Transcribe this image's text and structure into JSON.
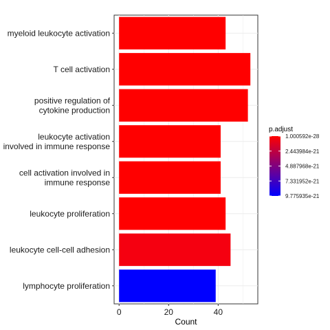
{
  "chart_data": {
    "type": "bar",
    "orientation": "horizontal",
    "categories": [
      [
        "myeloid leukocyte activation"
      ],
      [
        "T cell activation"
      ],
      [
        "positive regulation of",
        "cytokine production"
      ],
      [
        "leukocyte activation",
        "involved in immune response"
      ],
      [
        "cell activation involved in",
        "immune response"
      ],
      [
        "leukocyte proliferation"
      ],
      [
        "leukocyte cell-cell adhesion"
      ],
      [
        "lymphocyte proliferation"
      ]
    ],
    "values": [
      43,
      53,
      52,
      41,
      41,
      43,
      45,
      39
    ],
    "p_adjust": [
      1e-28,
      1e-28,
      1e-28,
      1e-28,
      1e-28,
      1e-28,
      1.2e-22,
      9.775935e-21
    ],
    "bar_colors": [
      "#ff0000",
      "#ff0000",
      "#ff0000",
      "#ff0000",
      "#ff0000",
      "#ff0000",
      "#f50010",
      "#0000ff"
    ],
    "xlabel": "Count",
    "ylabel": "",
    "xlim": [
      -2,
      56
    ],
    "xticks": [
      0,
      20,
      40
    ],
    "grid": true,
    "legend": {
      "title": "p.adjust",
      "position": "right",
      "low_color": "#ff0000",
      "high_color": "#0000ff",
      "range": [
        1.000592e-28,
        9.775935e-21
      ],
      "labels": [
        "1.000592e-28",
        "2.443984e-21",
        "4.887968e-21",
        "7.331952e-21",
        "9.775935e-21"
      ]
    }
  }
}
